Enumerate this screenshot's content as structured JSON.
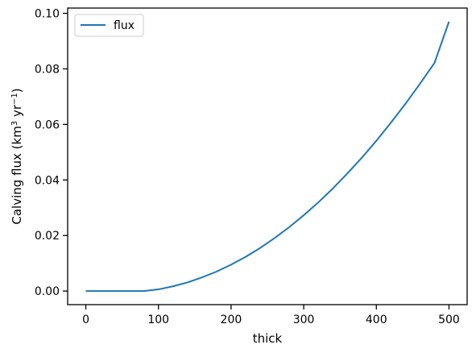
{
  "chart_data": {
    "type": "line",
    "xlabel": "thick",
    "ylabel": {
      "base": "Calving flux (km",
      "sup1": "3",
      "mid": " yr",
      "sup2": "−1",
      "end": ")"
    },
    "xlim": [
      -25,
      525
    ],
    "ylim": [
      -0.0049,
      0.1019
    ],
    "xticks": [
      0,
      100,
      200,
      300,
      400,
      500
    ],
    "xtick_labels": [
      "0",
      "100",
      "200",
      "300",
      "400",
      "500"
    ],
    "yticks": [
      0.0,
      0.02,
      0.04,
      0.06,
      0.08,
      0.1
    ],
    "ytick_labels": [
      "0.00",
      "0.02",
      "0.04",
      "0.06",
      "0.08",
      "0.10"
    ],
    "grid": false,
    "legend": {
      "position": "top-left",
      "entries": [
        "flux"
      ]
    },
    "series": [
      {
        "name": "flux",
        "color": "#1f77b4",
        "x": [
          0,
          20,
          40,
          60,
          80,
          100,
          120,
          140,
          160,
          180,
          200,
          220,
          240,
          260,
          280,
          300,
          320,
          340,
          360,
          380,
          400,
          420,
          440,
          460,
          480,
          500
        ],
        "y": [
          0,
          0,
          0,
          0,
          0,
          0.0006,
          0.0017,
          0.0031,
          0.0049,
          0.007,
          0.0095,
          0.0123,
          0.0155,
          0.0191,
          0.023,
          0.0273,
          0.0319,
          0.0369,
          0.0423,
          0.048,
          0.0541,
          0.0606,
          0.0674,
          0.0746,
          0.0821,
          0.097
        ]
      }
    ]
  }
}
